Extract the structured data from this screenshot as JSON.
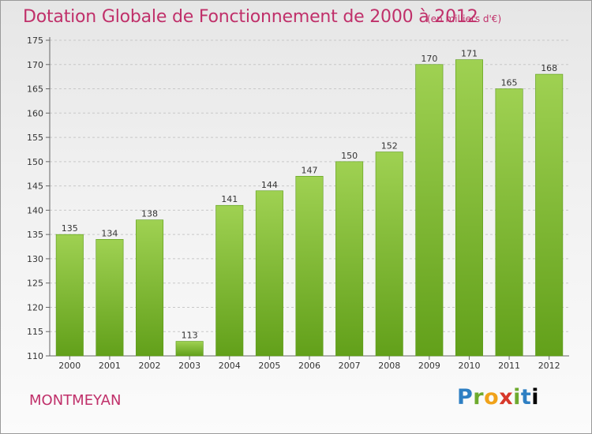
{
  "chart_data": {
    "type": "bar",
    "title": "Dotation Globale de Fonctionnement de 2000 à 2012",
    "subtitle": "(en milliers d'€)",
    "categories": [
      "2000",
      "2001",
      "2002",
      "2003",
      "2004",
      "2005",
      "2006",
      "2007",
      "2008",
      "2009",
      "2010",
      "2011",
      "2012"
    ],
    "values": [
      135,
      134,
      138,
      113,
      141,
      144,
      147,
      150,
      152,
      170,
      171,
      165,
      168
    ],
    "ylim": [
      110,
      175
    ],
    "yticks": [
      110,
      115,
      120,
      125,
      130,
      135,
      140,
      145,
      150,
      155,
      160,
      165,
      170,
      175
    ],
    "xlabel": "",
    "ylabel": "",
    "grid": "horizontal dashed",
    "bar_color": "#8cc63f"
  },
  "commune": "MONTMEYAN",
  "logo": {
    "letters": [
      "P",
      "r",
      "o",
      "x",
      "i",
      "t",
      "i"
    ]
  }
}
